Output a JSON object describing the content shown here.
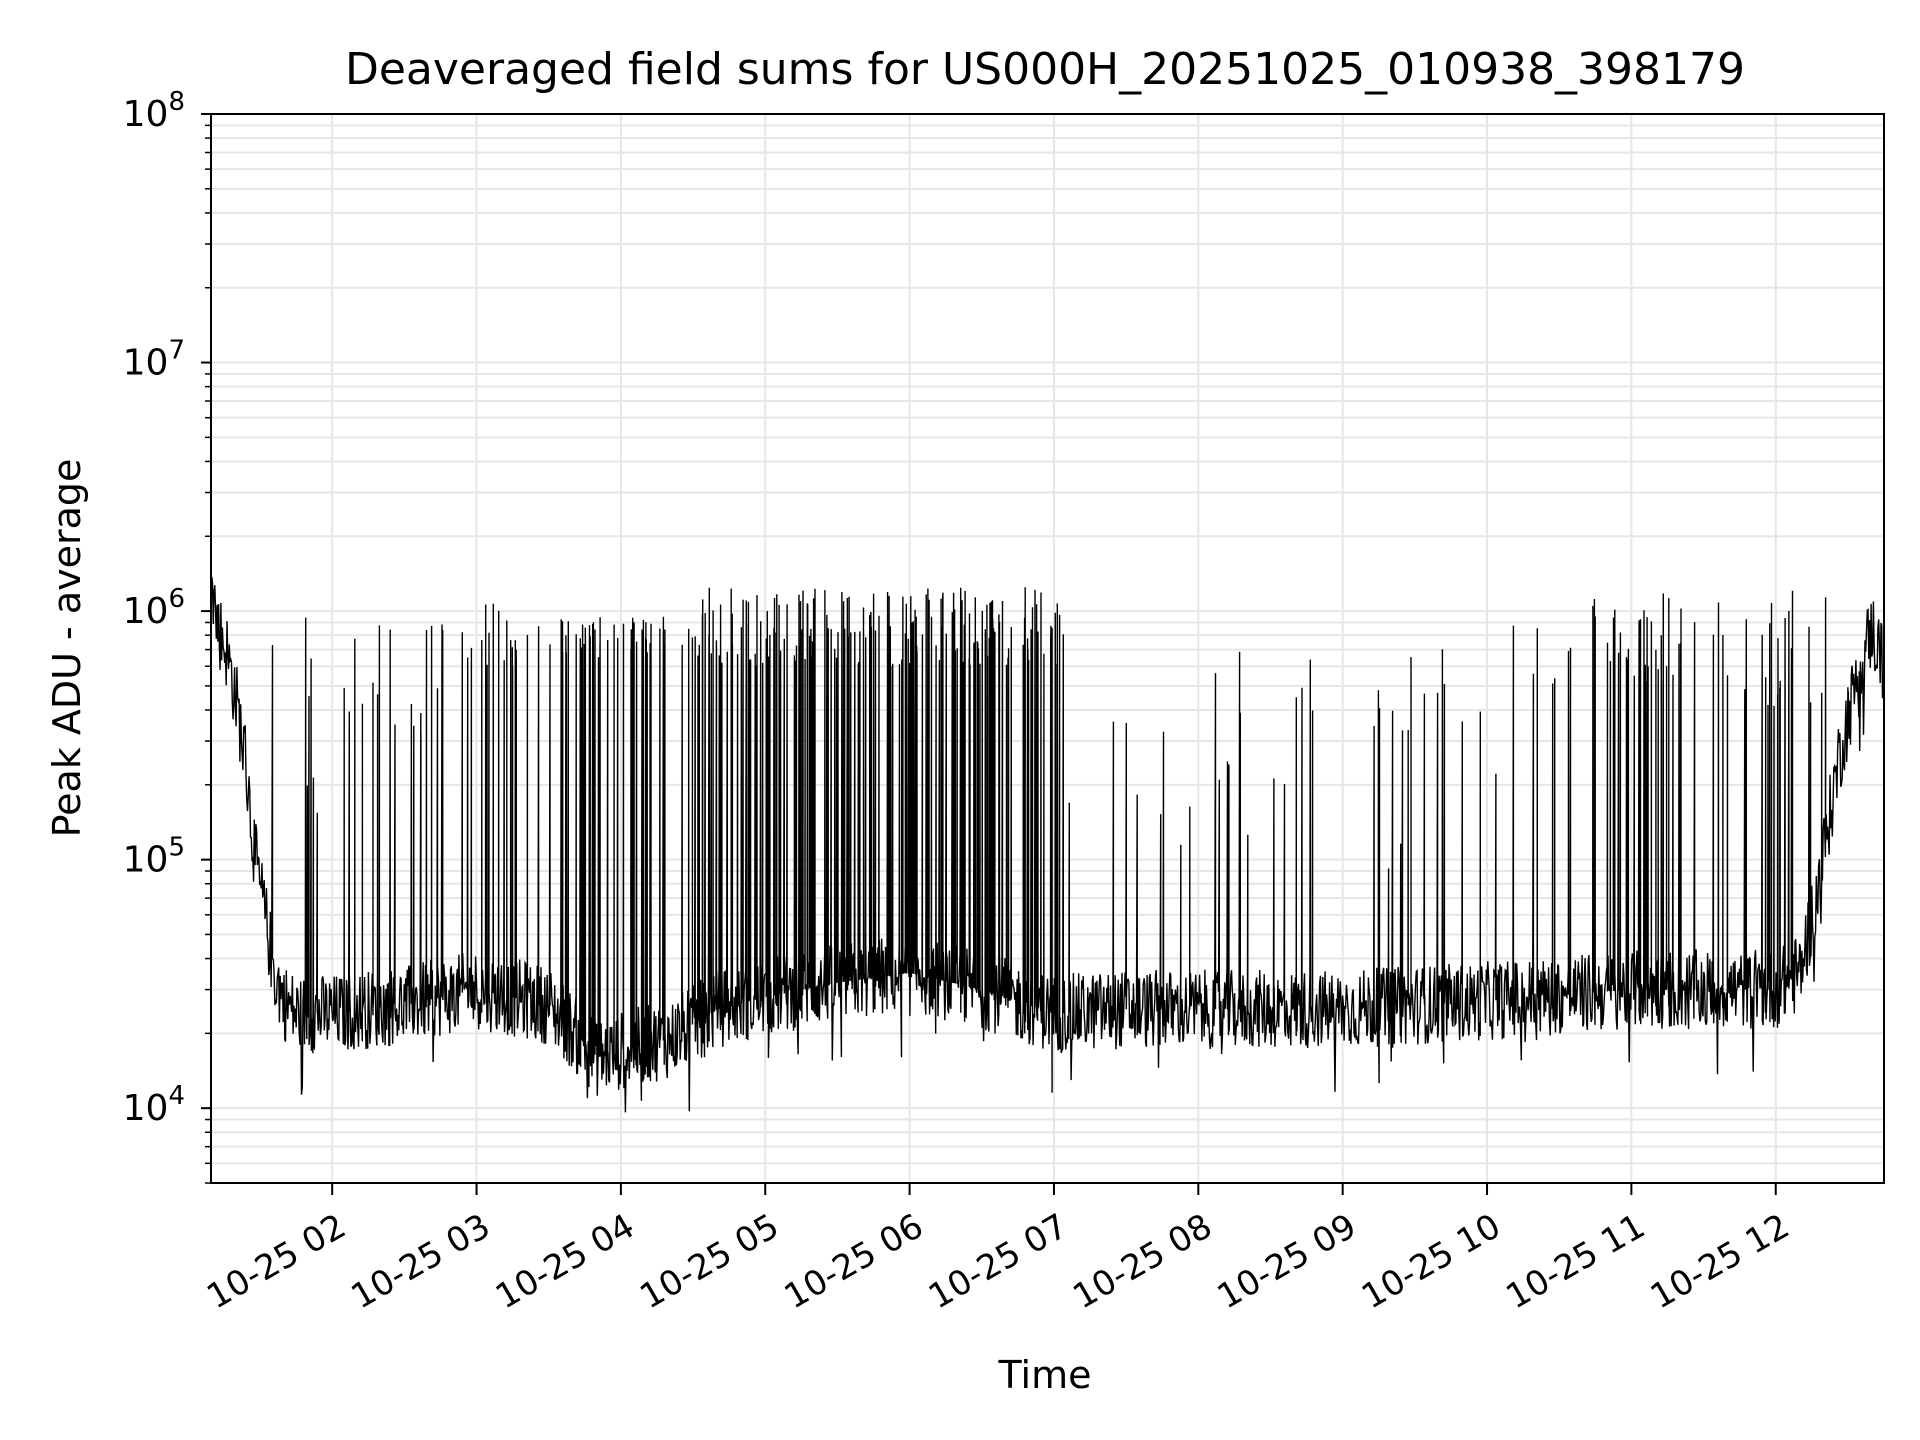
{
  "chart_data": {
    "type": "line",
    "title": "Deaveraged field sums for US000H_20251025_010938_398179",
    "xlabel": "Time",
    "ylabel": "Peak ADU - average",
    "yscale": "log",
    "ylim": [
      5000,
      100000000
    ],
    "xlim": [
      "2025-10-25T01:09:38",
      "2025-10-25T12:45:00"
    ],
    "grid": true,
    "line_color": "#000000",
    "x_ticks": [
      {
        "t": "2025-10-25T02:00",
        "label": "10-25 02"
      },
      {
        "t": "2025-10-25T03:00",
        "label": "10-25 03"
      },
      {
        "t": "2025-10-25T04:00",
        "label": "10-25 04"
      },
      {
        "t": "2025-10-25T05:00",
        "label": "10-25 05"
      },
      {
        "t": "2025-10-25T06:00",
        "label": "10-25 06"
      },
      {
        "t": "2025-10-25T07:00",
        "label": "10-25 07"
      },
      {
        "t": "2025-10-25T08:00",
        "label": "10-25 08"
      },
      {
        "t": "2025-10-25T09:00",
        "label": "10-25 09"
      },
      {
        "t": "2025-10-25T10:00",
        "label": "10-25 10"
      },
      {
        "t": "2025-10-25T11:00",
        "label": "10-25 11"
      },
      {
        "t": "2025-10-25T12:00",
        "label": "10-25 12"
      }
    ],
    "y_ticks": [
      {
        "value": 10000,
        "base": "10",
        "exp": "4"
      },
      {
        "value": 100000,
        "base": "10",
        "exp": "5"
      },
      {
        "value": 1000000,
        "base": "10",
        "exp": "6"
      },
      {
        "value": 10000000,
        "base": "10",
        "exp": "7"
      },
      {
        "value": 100000000,
        "base": "10",
        "exp": "8"
      }
    ],
    "series": [
      {
        "baseline": {
          "x": [
            "2025-10-25T01:09:38",
            "2025-10-25T01:12",
            "2025-10-25T01:16",
            "2025-10-25T01:20",
            "2025-10-25T01:24",
            "2025-10-25T01:28",
            "2025-10-25T01:32",
            "2025-10-25T01:36",
            "2025-10-25T01:40",
            "2025-10-25T01:45",
            "2025-10-25T02:00",
            "2025-10-25T02:30",
            "2025-10-25T03:00",
            "2025-10-25T03:30",
            "2025-10-25T03:50",
            "2025-10-25T04:00",
            "2025-10-25T04:20",
            "2025-10-25T04:40",
            "2025-10-25T05:00",
            "2025-10-25T05:30",
            "2025-10-25T06:00",
            "2025-10-25T06:30",
            "2025-10-25T07:00",
            "2025-10-25T07:30",
            "2025-10-25T08:00",
            "2025-10-25T09:00",
            "2025-10-25T10:00",
            "2025-10-25T11:00",
            "2025-10-25T12:00",
            "2025-10-25T12:10",
            "2025-10-25T12:18",
            "2025-10-25T12:26",
            "2025-10-25T12:34",
            "2025-10-25T12:40",
            "2025-10-25T12:45"
          ],
          "y": [
            1500000,
            900000,
            700000,
            450000,
            250000,
            100000,
            60000,
            35000,
            27000,
            24000,
            24000,
            26000,
            30000,
            26000,
            16000,
            17000,
            19000,
            25000,
            28000,
            32000,
            35000,
            30000,
            24000,
            25000,
            25000,
            25000,
            27000,
            30000,
            30000,
            35000,
            80000,
            250000,
            550000,
            850000,
            600000
          ]
        },
        "spike_ranges": [
          {
            "from": "2025-10-25T01:30",
            "to": "2025-10-25T02:00",
            "count": 7,
            "peak": [
              100000,
              950000
            ]
          },
          {
            "from": "2025-10-25T02:00",
            "to": "2025-10-25T02:45",
            "count": 16,
            "peak": [
              250000,
              1050000
            ]
          },
          {
            "from": "2025-10-25T02:45",
            "to": "2025-10-25T03:30",
            "count": 22,
            "peak": [
              600000,
              1100000
            ]
          },
          {
            "from": "2025-10-25T03:30",
            "to": "2025-10-25T04:30",
            "count": 48,
            "peak": [
              650000,
              950000
            ]
          },
          {
            "from": "2025-10-25T04:30",
            "to": "2025-10-25T07:05",
            "count": 190,
            "peak": [
              600000,
              1250000
            ]
          },
          {
            "from": "2025-10-25T07:05",
            "to": "2025-10-25T09:30",
            "count": 30,
            "peak": [
              90000,
              700000
            ]
          },
          {
            "from": "2025-10-25T09:30",
            "to": "2025-10-25T10:15",
            "count": 8,
            "peak": [
              200000,
              1000000
            ]
          },
          {
            "from": "2025-10-25T10:15",
            "to": "2025-10-25T11:10",
            "count": 28,
            "peak": [
              500000,
              1150000
            ]
          },
          {
            "from": "2025-10-25T11:10",
            "to": "2025-10-25T12:45",
            "count": 40,
            "peak": [
              400000,
              1300000
            ]
          }
        ]
      }
    ]
  }
}
